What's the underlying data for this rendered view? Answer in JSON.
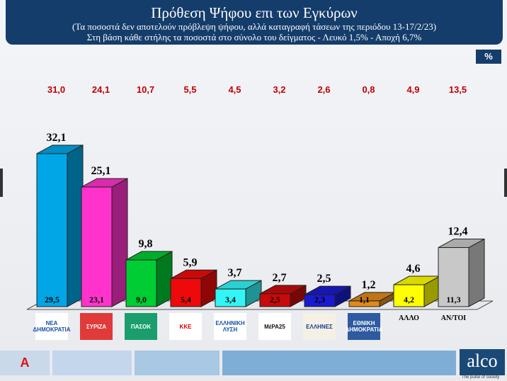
{
  "header": {
    "title": "Πρόθεση Ψήφου επι των Εγκύρων",
    "subtitle1": "(Τα ποσοστά δεν αποτελούν πρόβλεψη ψήφου, αλλά καταγραφή τάσεων της περιόδου  13-17/2/23)",
    "subtitle2": "Στη βάση κάθε στήλης τα ποσοστά στο σύνολο του δείγματος - Λευκό 1,5% - Αποχή 6,7%"
  },
  "unit_badge": "%",
  "chart_data": {
    "type": "bar",
    "categories": [
      "ΝΕΑ ΔΗΜΟΚΡΑΤΙΑ",
      "ΣΥΡΙΖΑ",
      "ΠΑΣΟΚ",
      "ΚΚΕ",
      "ΕΛΛΗΝΙΚΗ ΛΥΣΗ",
      "ΜέΡΑ25",
      "ΕΛΛΗΝΕΣ",
      "ΕΘΝΙΚΗ ΔΗΜΟΚΡΑΤΙΑ",
      "ΑΛΛΟ",
      "ΑΝ/ΤΟΙ"
    ],
    "series": [
      {
        "values": [
          32.1,
          25.1,
          9.8,
          5.9,
          3.7,
          2.7,
          2.5,
          1.2,
          4.6,
          12.4
        ],
        "labels": [
          "32,1",
          "25,1",
          "9,8",
          "5,9",
          "3,7",
          "2,7",
          "2,5",
          "1,2",
          "4,6",
          "12,4"
        ]
      },
      {
        "values": [
          29.5,
          23.1,
          9.0,
          5.4,
          3.4,
          2.5,
          2.3,
          1.1,
          4.2,
          11.3
        ],
        "labels": [
          "29,5",
          "23,1",
          "9,0",
          "5,4",
          "3,4",
          "2,5",
          "2,3",
          "1,1",
          "4,2",
          "11,3"
        ]
      },
      {
        "values": [
          31.0,
          24.1,
          10.7,
          5.5,
          4.5,
          3.2,
          2.6,
          0.8,
          4.9,
          13.5
        ],
        "labels": [
          "31,0",
          "24,1",
          "10,7",
          "5,5",
          "4,5",
          "3,2",
          "2,6",
          "0,8",
          "4,9",
          "13,5"
        ]
      }
    ],
    "colors": [
      "#00a6e6",
      "#ff33cc",
      "#00cc33",
      "#ee0a0a",
      "#33f5f5",
      "#c80a0a",
      "#1a1ad0",
      "#e08a1a",
      "#ffff00",
      "#c8c8c8"
    ],
    "label_colors": {
      "top_row": "#c00000",
      "inside": "#000000",
      "bar_top": "#000000"
    },
    "text_categories": [
      "ΑΛΛΟ",
      "ΑΝ/ΤΟΙ"
    ]
  },
  "logos": [
    {
      "text": "ΝΕΑ ΔΗΜΟΚΡΑΤΙΑ",
      "bg": "#ffffff",
      "fg": "#1a4fa0"
    },
    {
      "text": "ΣΥΡΙΖΑ",
      "bg": "#e03a3a",
      "fg": "#ffffff"
    },
    {
      "text": "ΠΑΣΟΚ",
      "bg": "#1a9e6e",
      "fg": "#ffffff"
    },
    {
      "text": "ΚΚΕ",
      "bg": "#ffffff",
      "fg": "#d00000"
    },
    {
      "text": "ΕΛΛΗΝΙΚΗ ΛΥΣΗ",
      "bg": "#ffffff",
      "fg": "#1a4fa0"
    },
    {
      "text": "ΜέΡΑ25",
      "bg": "#ffffff",
      "fg": "#111111"
    },
    {
      "text": "ΕΛΛΗΝΕΣ",
      "bg": "#f4f0e6",
      "fg": "#1a3f8a"
    },
    {
      "text": "ΕΘΝΙΚΗ ΔΗΜΟΚΡΑΤΙΑ",
      "bg": "#2d5aa0",
      "fg": "#ffffff"
    }
  ],
  "footer": {
    "brand": "alco",
    "tagline": "The pulse of society",
    "news_logo": "A NEWS"
  }
}
